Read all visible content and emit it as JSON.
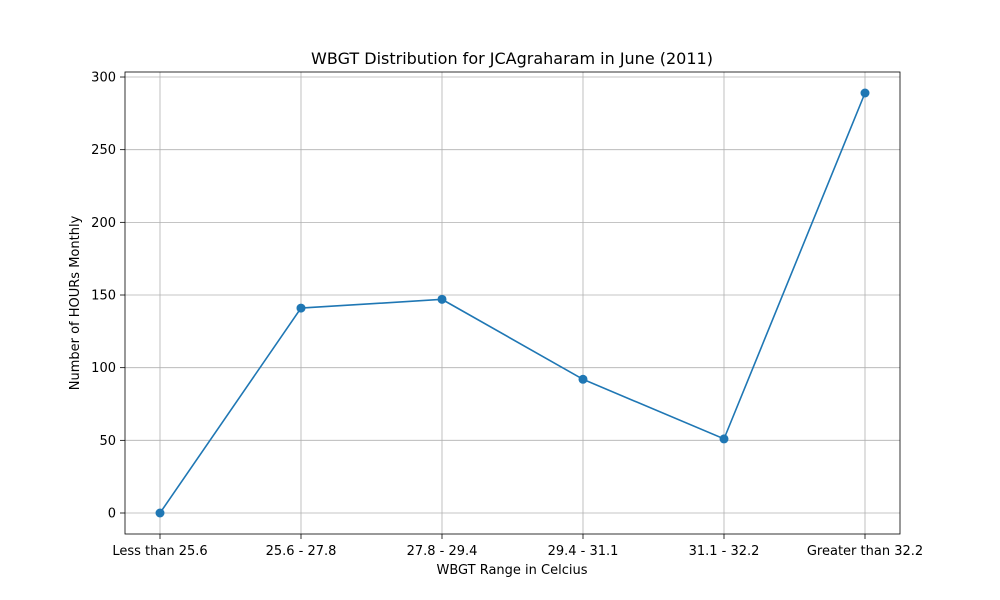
{
  "chart_data": {
    "type": "line",
    "title": "WBGT Distribution for JCAgraharam in June (2011)",
    "xlabel": "WBGT Range in Celcius",
    "ylabel": "Number of HOURs Monthly",
    "categories": [
      "Less than 25.6",
      "25.6 - 27.8",
      "27.8 - 29.4",
      "29.4 - 31.1",
      "31.1 - 32.2",
      "Greater than 32.2"
    ],
    "series": [
      {
        "values": [
          0,
          141,
          147,
          92,
          51,
          289
        ]
      }
    ],
    "ylim": [
      -14.45,
      303.45
    ],
    "yticks": [
      0,
      50,
      100,
      150,
      200,
      250,
      300
    ],
    "grid": true,
    "marker": "circle",
    "colors": {
      "line": "#1f77b4",
      "grid": "#b0b0b0",
      "axis": "#000000"
    }
  }
}
